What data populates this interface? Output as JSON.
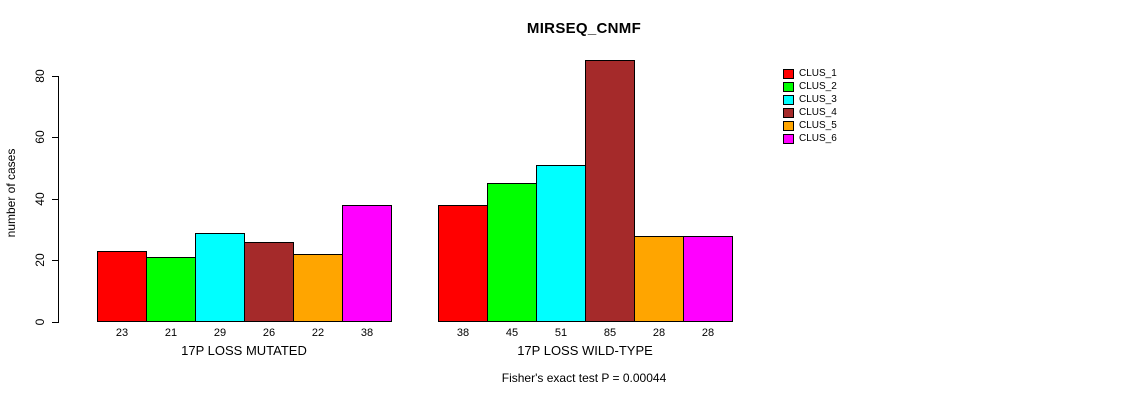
{
  "chart_data": {
    "type": "bar",
    "title": "MIRSEQ_CNMF",
    "ylabel": "number of cases",
    "xlabel": "",
    "footnote": "Fisher's exact test P = 0.00044",
    "ylim": [
      0,
      80
    ],
    "yticks": [
      0,
      20,
      40,
      60,
      80
    ],
    "grid": false,
    "legend_position": "right",
    "bar_borders": "#000000",
    "categories": [
      "17P LOSS MUTATED",
      "17P LOSS WILD-TYPE"
    ],
    "series": [
      {
        "name": "CLUS_1",
        "color": "#FF0000",
        "values": [
          23,
          38
        ]
      },
      {
        "name": "CLUS_2",
        "color": "#00FF00",
        "values": [
          21,
          45
        ]
      },
      {
        "name": "CLUS_3",
        "color": "#00FFFF",
        "values": [
          29,
          51
        ]
      },
      {
        "name": "CLUS_4",
        "color": "#A52A2A",
        "values": [
          26,
          85
        ]
      },
      {
        "name": "CLUS_5",
        "color": "#FFA500",
        "values": [
          22,
          28
        ]
      },
      {
        "name": "CLUS_6",
        "color": "#FF00FF",
        "values": [
          38,
          28
        ]
      }
    ],
    "value_labels": {
      "17P LOSS MUTATED": [
        23,
        21,
        29,
        26,
        22,
        38
      ],
      "17P LOSS WILD-TYPE": [
        38,
        45,
        51,
        85,
        28,
        28
      ]
    }
  }
}
